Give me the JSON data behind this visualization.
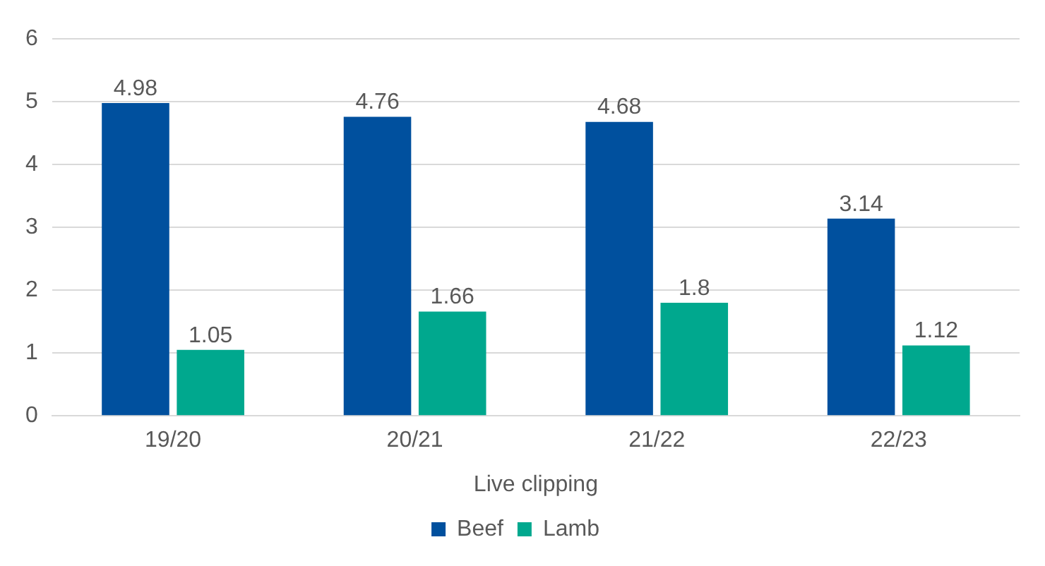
{
  "chart_data": {
    "type": "bar",
    "xlabel": "Live clipping",
    "categories": [
      "19/20",
      "20/21",
      "21/22",
      "22/23"
    ],
    "series": [
      {
        "name": "Beef",
        "color": "#00509e",
        "values": [
          4.98,
          4.76,
          4.68,
          3.14
        ]
      },
      {
        "name": "Lamb",
        "color": "#00a88e",
        "values": [
          1.05,
          1.66,
          1.8,
          1.12
        ]
      }
    ],
    "ylim": [
      0,
      6
    ],
    "yticks": [
      0,
      1,
      2,
      3,
      4,
      5,
      6
    ],
    "grid": "y",
    "legend": "bottom",
    "data_labels": true
  }
}
